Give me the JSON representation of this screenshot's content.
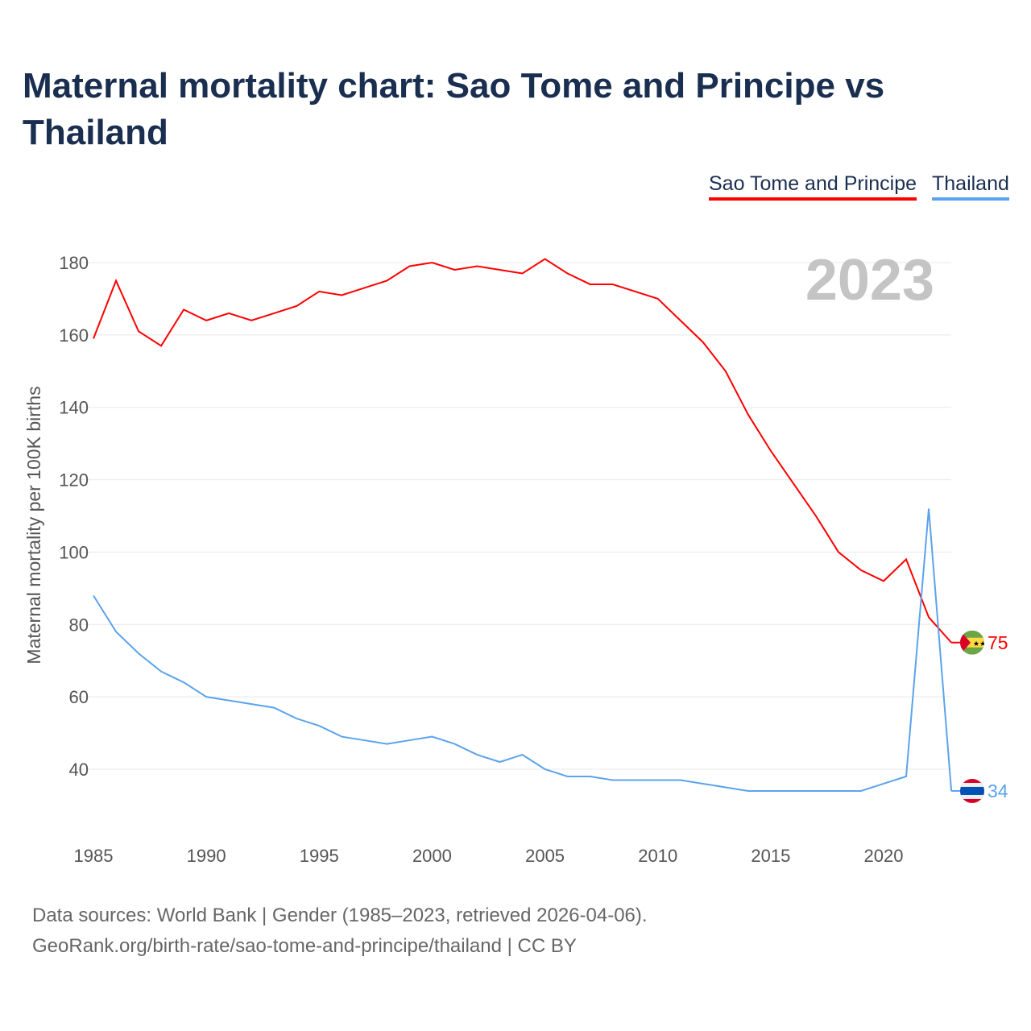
{
  "chart_data": {
    "type": "line",
    "title": "Maternal mortality chart: Sao Tome and Principe vs Thailand",
    "ylabel": "Maternal mortality per 100K births",
    "xlabel": "",
    "year_label": "2023",
    "xlim": [
      1985,
      2023
    ],
    "ylim": [
      28,
      190
    ],
    "x_ticks": [
      1985,
      1990,
      1995,
      2000,
      2005,
      2010,
      2015,
      2020
    ],
    "y_ticks": [
      40,
      60,
      80,
      100,
      120,
      140,
      160,
      180
    ],
    "grid": true,
    "legend_position": "top-right",
    "x": [
      1985,
      1986,
      1987,
      1988,
      1989,
      1990,
      1991,
      1992,
      1993,
      1994,
      1995,
      1996,
      1997,
      1998,
      1999,
      2000,
      2001,
      2002,
      2003,
      2004,
      2005,
      2006,
      2007,
      2008,
      2009,
      2010,
      2011,
      2012,
      2013,
      2014,
      2015,
      2016,
      2017,
      2018,
      2019,
      2020,
      2021,
      2022,
      2023
    ],
    "series": [
      {
        "name": "Sao Tome and Principe",
        "color": "#ff0000",
        "end_label": "75",
        "values": [
          159,
          175,
          161,
          157,
          167,
          164,
          166,
          164,
          166,
          168,
          172,
          171,
          173,
          175,
          179,
          180,
          178,
          179,
          178,
          177,
          181,
          177,
          174,
          174,
          172,
          170,
          164,
          158,
          150,
          138,
          128,
          119,
          110,
          100,
          95,
          92,
          98,
          82,
          75
        ]
      },
      {
        "name": "Thailand",
        "color": "#5ba3ec",
        "end_label": "34",
        "values": [
          88,
          78,
          72,
          67,
          64,
          60,
          59,
          58,
          57,
          54,
          52,
          49,
          48,
          47,
          48,
          49,
          47,
          44,
          42,
          44,
          40,
          38,
          38,
          37,
          37,
          37,
          37,
          36,
          35,
          34,
          34,
          34,
          34,
          34,
          34,
          36,
          38,
          112,
          34
        ]
      }
    ]
  },
  "source": {
    "line1": "Data sources: World Bank | Gender (1985–2023, retrieved 2026-04-06).",
    "line2": "GeoRank.org/birth-rate/sao-tome-and-principe/thailand | CC BY"
  }
}
